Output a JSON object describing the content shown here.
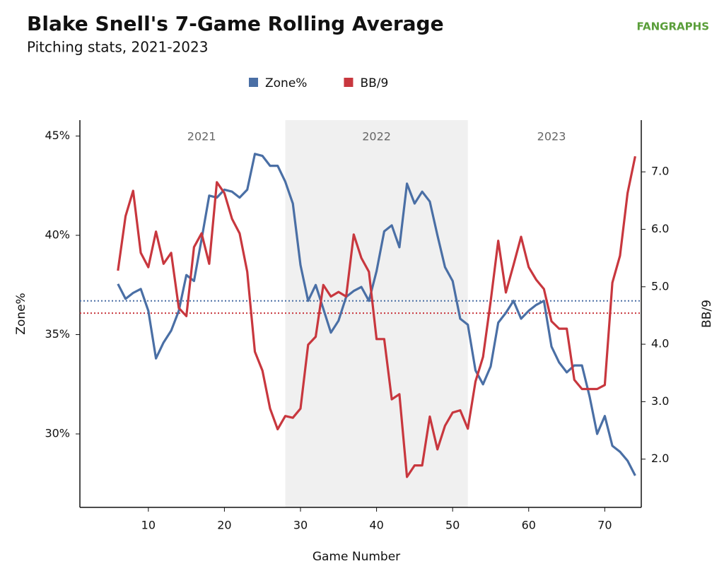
{
  "chart_data": {
    "type": "line",
    "title": "Blake Snell's 7-Game Rolling Average",
    "subtitle": "Pitching stats, 2021-2023",
    "logo": "FANGRAPHS",
    "x_label": "Game Number",
    "y_label": "Zone%",
    "y2_label": "BB/9",
    "xlim": [
      1,
      74.8
    ],
    "xticks": [
      10,
      20,
      30,
      40,
      50,
      60,
      70
    ],
    "ylim": [
      26.3,
      45.8
    ],
    "yticks": [
      {
        "value": 30,
        "label": "30%"
      },
      {
        "value": 35,
        "label": "35%"
      },
      {
        "value": 40,
        "label": "40%"
      },
      {
        "value": 45,
        "label": "45%"
      }
    ],
    "y2lim": [
      1.16,
      7.9
    ],
    "y2ticks": [
      {
        "value": 2,
        "label": "2.0"
      },
      {
        "value": 3,
        "label": "3.0"
      },
      {
        "value": 4,
        "label": "4.0"
      },
      {
        "value": 5,
        "label": "5.0"
      },
      {
        "value": 6,
        "label": "6.0"
      },
      {
        "value": 7,
        "label": "7.0"
      }
    ],
    "periods": [
      {
        "label": "2021",
        "range": [
          6,
          28
        ],
        "shaded": false
      },
      {
        "label": "2022",
        "range": [
          28,
          52
        ],
        "shaded": true
      },
      {
        "label": "2023",
        "range": [
          52,
          74
        ],
        "shaded": false
      }
    ],
    "reference_lines": [
      {
        "value": 36.7,
        "axis": "y",
        "color": "#4a6fa5"
      },
      {
        "value": 4.54,
        "axis": "y2",
        "color": "#c8373e"
      }
    ],
    "x": [
      6,
      7,
      8,
      9,
      10,
      11,
      12,
      13,
      14,
      15,
      16,
      17,
      18,
      19,
      20,
      21,
      22,
      23,
      24,
      25,
      26,
      27,
      28,
      29,
      30,
      31,
      32,
      33,
      34,
      35,
      36,
      37,
      38,
      39,
      40,
      41,
      42,
      43,
      44,
      45,
      46,
      47,
      48,
      49,
      50,
      51,
      52,
      53,
      54,
      55,
      56,
      57,
      58,
      59,
      60,
      61,
      62,
      63,
      64,
      65,
      66,
      67,
      68,
      69,
      70,
      71,
      72,
      73,
      74
    ],
    "series": [
      {
        "name": "Zone%",
        "color": "#4a6fa5",
        "axis": "y",
        "values": [
          37.55,
          36.8,
          37.1,
          37.3,
          36.2,
          33.8,
          34.6,
          35.2,
          36.2,
          38.0,
          37.7,
          39.8,
          42.0,
          41.9,
          42.3,
          42.2,
          41.9,
          42.3,
          44.1,
          44.0,
          43.5,
          43.5,
          42.7,
          41.6,
          38.5,
          36.7,
          37.5,
          36.3,
          35.1,
          35.7,
          36.9,
          37.2,
          37.4,
          36.7,
          38.2,
          40.2,
          40.5,
          39.4,
          42.6,
          41.6,
          42.2,
          41.7,
          40.0,
          38.4,
          37.7,
          35.8,
          35.5,
          33.2,
          32.5,
          33.4,
          35.6,
          36.1,
          36.7,
          35.8,
          36.2,
          36.5,
          36.7,
          34.4,
          33.6,
          33.1,
          33.45,
          33.45,
          31.9,
          30.0,
          30.9,
          29.4,
          29.1,
          28.65,
          27.9
        ]
      },
      {
        "name": "BB/9",
        "color": "#c8373e",
        "axis": "y2",
        "values": [
          5.28,
          6.23,
          6.67,
          5.59,
          5.34,
          5.96,
          5.4,
          5.59,
          4.63,
          4.49,
          5.69,
          5.93,
          5.4,
          6.82,
          6.63,
          6.18,
          5.93,
          5.26,
          3.87,
          3.54,
          2.88,
          2.52,
          2.75,
          2.72,
          2.88,
          3.99,
          4.13,
          5.03,
          4.83,
          4.91,
          4.83,
          5.91,
          5.5,
          5.26,
          4.09,
          4.09,
          3.04,
          3.13,
          1.69,
          1.89,
          1.89,
          2.74,
          2.17,
          2.58,
          2.81,
          2.85,
          2.53,
          3.35,
          3.78,
          4.75,
          5.8,
          4.9,
          5.38,
          5.87,
          5.34,
          5.12,
          4.96,
          4.4,
          4.27,
          4.27,
          3.38,
          3.22,
          3.22,
          3.22,
          3.29,
          5.07,
          5.54,
          6.63,
          7.27
        ]
      }
    ]
  }
}
